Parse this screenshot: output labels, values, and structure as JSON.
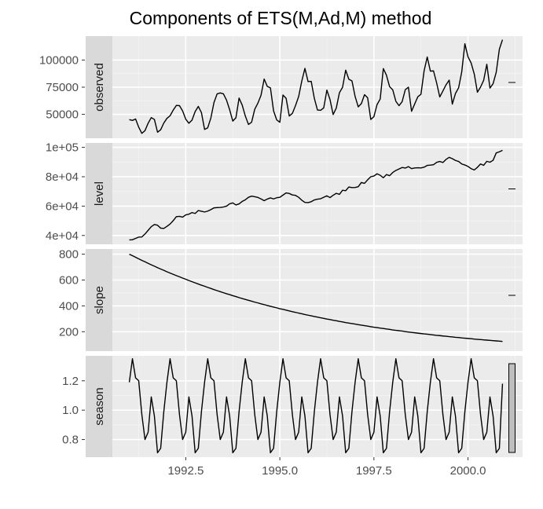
{
  "title": "Components of ETS(M,Ad,M) method",
  "colors": {
    "panel_bg": "#ebebeb",
    "strip_bg": "#d9d9d9",
    "grid_major": "#ffffff",
    "grid_minor": "#f5f5f5",
    "line": "#000000",
    "tick_text": "#4d4d4d",
    "scale_bar_fill": "#bebebe"
  },
  "chart_data": {
    "type": "line",
    "title": "Components of ETS(M,Ad,M) method",
    "x": {
      "start": 1991.0,
      "frequency": 12,
      "count": 120,
      "range": [
        1990.55,
        2001.45
      ],
      "ticks": [
        1992.5,
        1995.0,
        1997.5,
        2000.0
      ],
      "tick_labels": [
        "1992.5",
        "1995.0",
        "1997.5",
        "2000.0"
      ]
    },
    "panels": [
      {
        "name": "observed",
        "strip_label": "observed",
        "ylim": [
          28000,
          122000
        ],
        "ticks": [
          50000,
          75000,
          100000
        ],
        "tick_labels": [
          "50000",
          "75000",
          "100000"
        ],
        "scale_bar": "small",
        "values": [
          45100,
          44400,
          45700,
          38200,
          32500,
          35000,
          41800,
          47000,
          45300,
          33600,
          35800,
          42000,
          46300,
          48700,
          53900,
          58200,
          58000,
          53100,
          45500,
          41800,
          44700,
          52600,
          57300,
          51600,
          36100,
          37600,
          46600,
          60900,
          68800,
          69700,
          68900,
          63100,
          54200,
          43800,
          46900,
          65000,
          58500,
          48400,
          40700,
          42800,
          54700,
          60300,
          67600,
          82500,
          75700,
          74400,
          53200,
          44900,
          42700,
          67800,
          64800,
          48500,
          50900,
          58100,
          66400,
          80700,
          92300,
          80200,
          80400,
          64700,
          54000,
          53700,
          56000,
          72300,
          63600,
          49800,
          55800,
          69900,
          74900,
          90700,
          82300,
          80800,
          66500,
          56900,
          59900,
          68100,
          65200,
          45300,
          47900,
          59000,
          64100,
          92100,
          86000,
          75500,
          72600,
          62000,
          58000,
          61700,
          72700,
          75000,
          52800,
          59600,
          66200,
          68500,
          90000,
          102800,
          89800,
          90000,
          78900,
          66000,
          71500,
          77200,
          81500,
          59400,
          69200,
          74400,
          89100,
          115000,
          103000,
          97300,
          87100,
          70400,
          75100,
          81400,
          96100,
          74200,
          78200,
          88800,
          110000,
          118700
        ]
      },
      {
        "name": "level",
        "strip_label": "level",
        "ylim": [
          34000,
          103000
        ],
        "ticks": [
          40000,
          60000,
          80000,
          100000
        ],
        "tick_labels": [
          "4e+04",
          "6e+04",
          "8e+04",
          "1e+05"
        ],
        "scale_bar": "small",
        "values": [
          37000,
          37100,
          38000,
          38900,
          39000,
          41000,
          43500,
          46000,
          47500,
          47000,
          45000,
          44800,
          46200,
          47800,
          50100,
          52800,
          53000,
          52500,
          54000,
          54500,
          55600,
          55000,
          57000,
          56500,
          56000,
          56600,
          57600,
          58800,
          59000,
          59100,
          59400,
          60000,
          61600,
          62200,
          60800,
          61500,
          63200,
          64300,
          66000,
          66800,
          66400,
          65900,
          64900,
          63700,
          64800,
          65600,
          64900,
          65700,
          66000,
          67500,
          69000,
          68600,
          67600,
          67300,
          66000,
          64000,
          62500,
          62400,
          63000,
          64200,
          64700,
          65000,
          66000,
          67000,
          65800,
          67400,
          68700,
          68000,
          70800,
          70500,
          73000,
          72600,
          72700,
          73200,
          76100,
          75500,
          77900,
          80000,
          80500,
          82000,
          81000,
          79300,
          81500,
          80700,
          82900,
          84300,
          85300,
          86300,
          85900,
          86900,
          85500,
          86000,
          86100,
          86000,
          86500,
          87700,
          87900,
          88200,
          89800,
          90400,
          89700,
          91800,
          93200,
          92300,
          91100,
          90400,
          88700,
          88000,
          87000,
          85500,
          84600,
          86400,
          88700,
          87800,
          90500,
          89900,
          91200,
          96200,
          97000,
          98000
        ]
      },
      {
        "name": "slope",
        "strip_label": "slope",
        "ylim": [
          50,
          840
        ],
        "ticks": [
          200,
          400,
          600,
          800
        ],
        "tick_labels": [
          "200",
          "400",
          "600",
          "800"
        ],
        "scale_bar": "small",
        "values": [
          800,
          788,
          776,
          764,
          752,
          741,
          729,
          718,
          707,
          696,
          685,
          675,
          664,
          654,
          644,
          634,
          625,
          615,
          606,
          596,
          587,
          578,
          569,
          560,
          552,
          543,
          535,
          526,
          518,
          510,
          502,
          494,
          487,
          479,
          472,
          464,
          457,
          450,
          443,
          436,
          429,
          423,
          416,
          410,
          403,
          397,
          391,
          385,
          378,
          373,
          367,
          361,
          355,
          350,
          344,
          339,
          333,
          328,
          323,
          318,
          313,
          308,
          303,
          298,
          294,
          289,
          285,
          280,
          276,
          271,
          267,
          263,
          259,
          255,
          251,
          247,
          243,
          239,
          235,
          232,
          228,
          225,
          221,
          218,
          214,
          211,
          208,
          205,
          201,
          198,
          195,
          192,
          189,
          186,
          183,
          181,
          178,
          175,
          172,
          170,
          167,
          165,
          162,
          160,
          157,
          155,
          152,
          150,
          148,
          146,
          143,
          141,
          139,
          137,
          135,
          133,
          131,
          129,
          127,
          125
        ]
      },
      {
        "name": "season",
        "strip_label": "season",
        "ylim": [
          0.68,
          1.37
        ],
        "ticks": [
          0.8,
          1.0,
          1.2
        ],
        "tick_labels": [
          "0.8",
          "1.0",
          "1.2"
        ],
        "scale_bar": "large",
        "values": [
          1.19,
          1.35,
          1.22,
          1.2,
          0.97,
          0.8,
          0.85,
          1.09,
          0.96,
          0.71,
          0.74,
          0.99,
          1.19,
          1.35,
          1.22,
          1.2,
          0.97,
          0.8,
          0.85,
          1.09,
          0.96,
          0.71,
          0.74,
          0.99,
          1.19,
          1.35,
          1.22,
          1.2,
          0.97,
          0.8,
          0.85,
          1.09,
          0.96,
          0.71,
          0.74,
          0.99,
          1.19,
          1.35,
          1.22,
          1.2,
          0.97,
          0.8,
          0.85,
          1.09,
          0.96,
          0.71,
          0.74,
          0.99,
          1.19,
          1.35,
          1.22,
          1.2,
          0.97,
          0.8,
          0.85,
          1.09,
          0.96,
          0.71,
          0.74,
          0.99,
          1.19,
          1.35,
          1.22,
          1.2,
          0.97,
          0.8,
          0.85,
          1.09,
          0.96,
          0.71,
          0.74,
          0.99,
          1.19,
          1.35,
          1.22,
          1.2,
          0.97,
          0.8,
          0.85,
          1.09,
          0.96,
          0.71,
          0.74,
          0.99,
          1.19,
          1.35,
          1.22,
          1.2,
          0.97,
          0.8,
          0.85,
          1.09,
          0.96,
          0.71,
          0.74,
          0.99,
          1.19,
          1.35,
          1.22,
          1.2,
          0.97,
          0.8,
          0.85,
          1.09,
          0.96,
          0.71,
          0.74,
          0.99,
          1.19,
          1.35,
          1.22,
          1.2,
          0.97,
          0.8,
          0.85,
          1.09,
          0.96,
          0.71,
          0.74,
          1.18
        ]
      }
    ]
  }
}
